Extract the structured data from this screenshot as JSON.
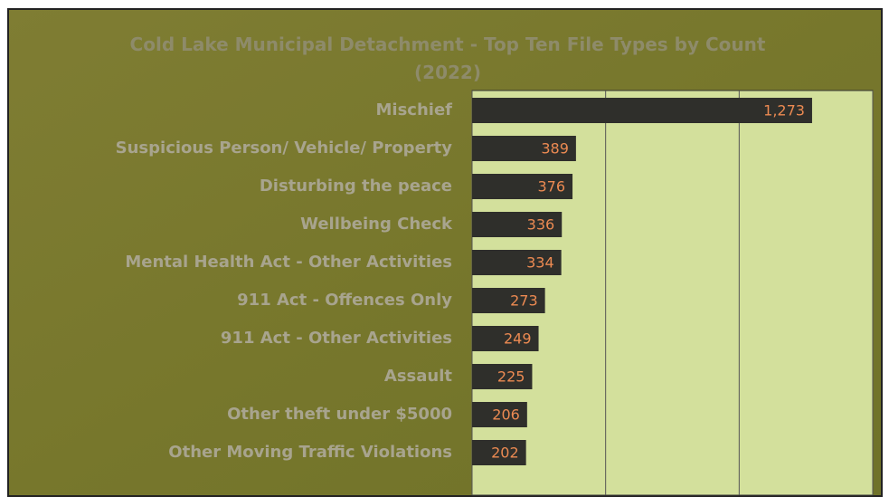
{
  "chart_data": {
    "type": "bar",
    "orientation": "horizontal",
    "title": "Cold Lake Municipal Detachment - Top Ten File Types by Count (2022)",
    "categories": [
      "Mischief",
      "Suspicious Person/ Vehicle/ Property",
      "Disturbing the peace",
      "Wellbeing Check",
      "Mental Health Act - Other Activities",
      "911 Act - Offences Only",
      "911 Act - Other Activities",
      "Assault",
      "Other theft under $5000",
      "Other Moving Traffic Violations"
    ],
    "values": [
      1273,
      389,
      376,
      336,
      334,
      273,
      249,
      225,
      206,
      202
    ],
    "value_labels": [
      "1,273",
      "389",
      "376",
      "336",
      "334",
      "273",
      "249",
      "225",
      "206",
      "202"
    ],
    "color": "#2f2f2b",
    "xlim": [
      0,
      1500
    ],
    "xticks": [
      0,
      500,
      1000,
      1500
    ],
    "grid": true
  }
}
